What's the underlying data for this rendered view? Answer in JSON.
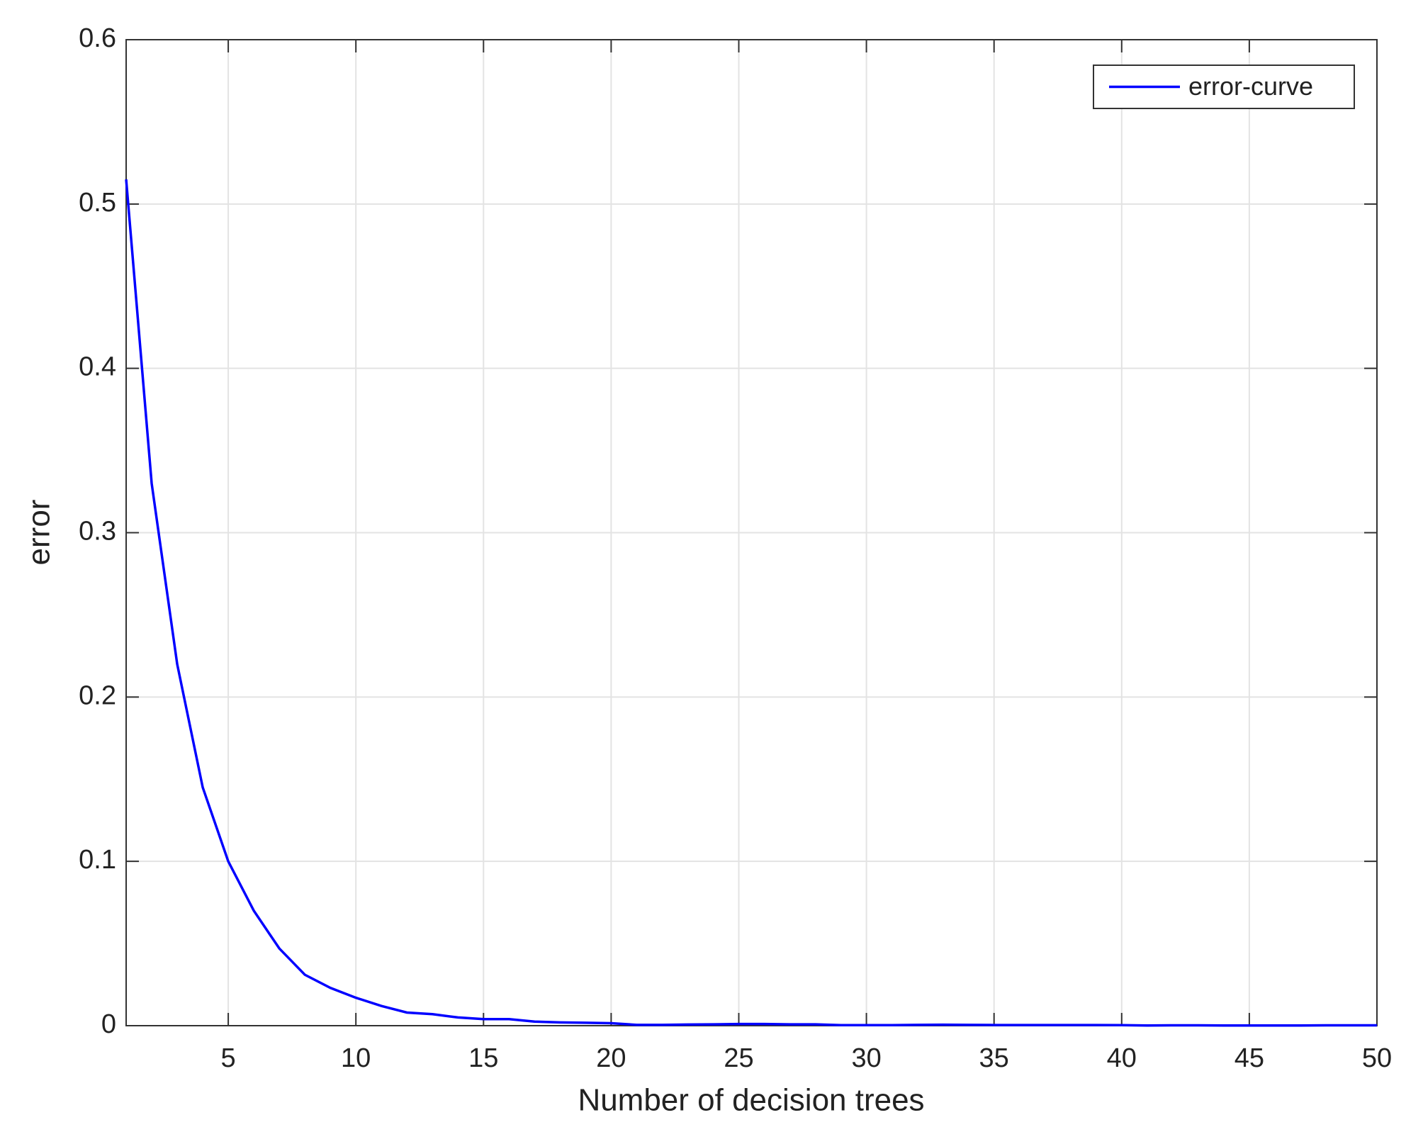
{
  "chart_data": {
    "type": "line",
    "x_label": "Number of decision trees",
    "y_label": "error",
    "x": [
      1,
      2,
      3,
      4,
      5,
      6,
      7,
      8,
      9,
      10,
      11,
      12,
      13,
      14,
      15,
      16,
      17,
      18,
      19,
      20,
      21,
      22,
      23,
      24,
      25,
      26,
      27,
      28,
      29,
      30,
      31,
      32,
      33,
      34,
      35,
      36,
      37,
      38,
      39,
      40,
      41,
      42,
      43,
      44,
      45,
      46,
      47,
      48,
      49,
      50
    ],
    "series": [
      {
        "name": "error-curve",
        "color": "#0000ff",
        "values": [
          0.515,
          0.33,
          0.22,
          0.145,
          0.1,
          0.07,
          0.047,
          0.031,
          0.023,
          0.017,
          0.012,
          0.008,
          0.007,
          0.005,
          0.004,
          0.004,
          0.0025,
          0.002,
          0.0018,
          0.0015,
          0.0005,
          0.0005,
          0.0007,
          0.0008,
          0.001,
          0.001,
          0.0008,
          0.0008,
          0.0003,
          0.0003,
          0.0003,
          0.0005,
          0.0006,
          0.0005,
          0.0004,
          0.0004,
          0.0004,
          0.0004,
          0.0004,
          0.0003,
          0.0001,
          0.0002,
          0.0002,
          0.0001,
          0.0001,
          0.0001,
          0.0001,
          0.0002,
          0.0002,
          0.0002
        ]
      }
    ],
    "xlim": [
      1,
      50
    ],
    "xticks": [
      5,
      10,
      15,
      20,
      25,
      30,
      35,
      40,
      45,
      50
    ],
    "ylim": [
      0,
      0.6
    ],
    "yticks": [
      0,
      0.1,
      0.2,
      0.3,
      0.4,
      0.5,
      0.6
    ],
    "grid": true,
    "legend": "upper right"
  }
}
